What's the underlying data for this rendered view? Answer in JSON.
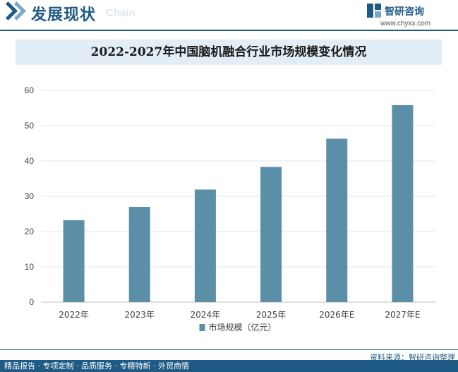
{
  "header": {
    "section_title": "发展现状",
    "section_subtitle": "Chain",
    "brand_name": "智研咨询",
    "brand_url": "www.chyxx.com"
  },
  "footer": {
    "source": "资料来源：智研咨询整理",
    "services": "精品报告 · 专项定制 · 品质服务 · 专精特新 · 外贸商情"
  },
  "colors": {
    "brand": "#1f5a84",
    "bar": "#5b8fa8",
    "title_band": "#e3edf5"
  },
  "chart_data": {
    "type": "bar",
    "title": "2022-2027年中国脑机融合行业市场规模变化情况",
    "categories": [
      "2022年",
      "2023年",
      "2024年",
      "2025年",
      "2026年E",
      "2027年E"
    ],
    "series": [
      {
        "name": "市场规模（亿元）",
        "values": [
          23.2,
          27.0,
          31.9,
          38.3,
          46.3,
          55.8
        ]
      }
    ],
    "ylim": [
      0,
      60
    ],
    "yticks": [
      0,
      10,
      20,
      30,
      40,
      50,
      60
    ],
    "grid": true,
    "legend": "bottom"
  }
}
